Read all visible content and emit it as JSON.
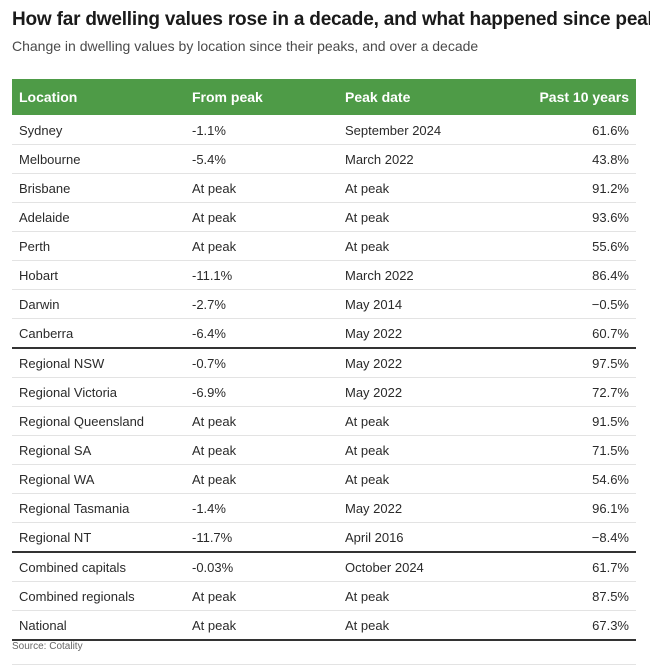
{
  "title": "How far dwelling values rose in a decade, and what happened since peak",
  "subtitle": "Change in dwelling values by location since their peaks, and over a decade",
  "source": "Source: Cotality",
  "colors": {
    "header_bg": "#4e9b47",
    "header_text": "#ffffff"
  },
  "chart_data": {
    "type": "table",
    "columns": [
      "Location",
      "From peak",
      "Peak date",
      "Past 10 years"
    ],
    "rows": [
      [
        "Sydney",
        "-1.1%",
        "September 2024",
        "61.6%"
      ],
      [
        "Melbourne",
        "-5.4%",
        "March 2022",
        "43.8%"
      ],
      [
        "Brisbane",
        "At peak",
        "At peak",
        "91.2%"
      ],
      [
        "Adelaide",
        "At peak",
        "At peak",
        "93.6%"
      ],
      [
        "Perth",
        "At peak",
        "At peak",
        "55.6%"
      ],
      [
        "Hobart",
        "-11.1%",
        "March 2022",
        "86.4%"
      ],
      [
        "Darwin",
        "-2.7%",
        "May 2014",
        "−0.5%"
      ],
      [
        "Canberra",
        "-6.4%",
        "May 2022",
        "60.7%"
      ],
      [
        "Regional NSW",
        "-0.7%",
        "May 2022",
        "97.5%"
      ],
      [
        "Regional Victoria",
        "-6.9%",
        "May 2022",
        "72.7%"
      ],
      [
        "Regional Queensland",
        "At peak",
        "At peak",
        "91.5%"
      ],
      [
        "Regional SA",
        "At peak",
        "At peak",
        "71.5%"
      ],
      [
        "Regional WA",
        "At peak",
        "At peak",
        "54.6%"
      ],
      [
        "Regional Tasmania",
        "-1.4%",
        "May 2022",
        "96.1%"
      ],
      [
        "Regional NT",
        "-11.7%",
        "April 2016",
        "−8.4%"
      ],
      [
        "Combined capitals",
        "-0.03%",
        "October 2024",
        "61.7%"
      ],
      [
        "Combined regionals",
        "At peak",
        "At peak",
        "87.5%"
      ],
      [
        "National",
        "At peak",
        "At peak",
        "67.3%"
      ]
    ],
    "group_ends": [
      7,
      14,
      17
    ]
  }
}
